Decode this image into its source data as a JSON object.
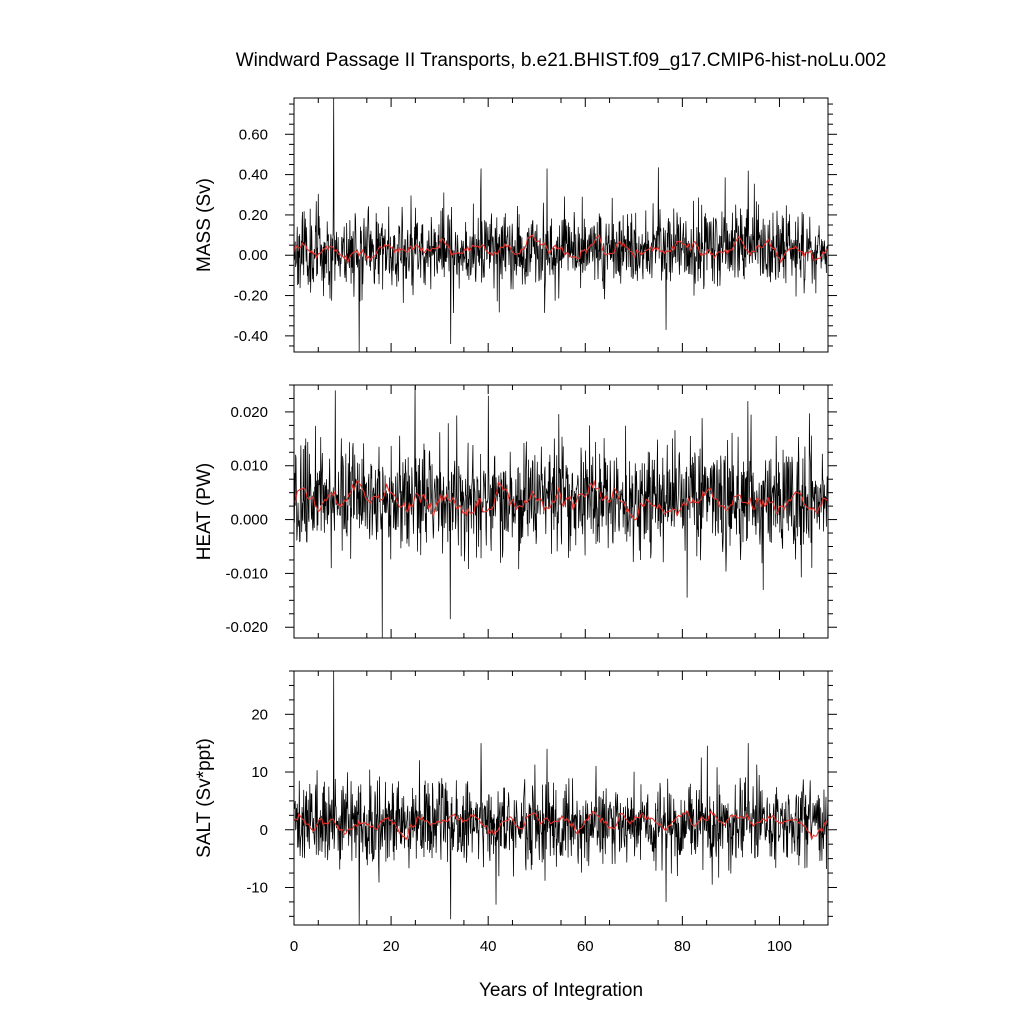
{
  "figure": {
    "title": "Windward Passage II Transports, b.e21.BHIST.f09_g17.CMIP6-hist-noLu.002",
    "xlabel": "Years of Integration"
  },
  "colors": {
    "raw_line": "#000000",
    "smoothed_line": "#e8302a",
    "frame": "#000000",
    "background": "#ffffff"
  },
  "chart_data": [
    {
      "type": "line",
      "panel": "mass",
      "ylabel": "MASS (Sv)",
      "xlim": [
        0,
        110
      ],
      "ylim": [
        -0.48,
        0.78
      ],
      "xticks": [
        0,
        20,
        40,
        60,
        80,
        100
      ],
      "yticks": [
        -0.4,
        -0.2,
        0.0,
        0.2,
        0.4,
        0.6
      ],
      "ytick_labels": [
        "-0.40",
        "-0.20",
        "0.00",
        "0.20",
        "0.40",
        "0.60"
      ],
      "series": [
        {
          "style": "raw",
          "mean": 0.03,
          "std": 0.1,
          "seed": 11,
          "spikes": [
            [
              8.2,
              0.78
            ],
            [
              13.4,
              -0.48
            ],
            [
              32.3,
              -0.44
            ],
            [
              38.5,
              0.43
            ],
            [
              52.1,
              0.43
            ],
            [
              76.6,
              -0.37
            ],
            [
              93.6,
              0.42
            ]
          ]
        },
        {
          "style": "smoothed",
          "mean": 0.03,
          "amp": 0.035,
          "seed": 12
        }
      ]
    },
    {
      "type": "line",
      "panel": "heat",
      "ylabel": "HEAT (PW)",
      "xlim": [
        0,
        110
      ],
      "ylim": [
        -0.022,
        0.025
      ],
      "xticks": [
        0,
        20,
        40,
        60,
        80,
        100
      ],
      "yticks": [
        -0.02,
        -0.01,
        0.0,
        0.01,
        0.02
      ],
      "ytick_labels": [
        "-0.020",
        "-0.010",
        "0.000",
        "0.010",
        "0.020"
      ],
      "series": [
        {
          "style": "raw",
          "mean": 0.004,
          "std": 0.0052,
          "seed": 21,
          "spikes": [
            [
              8.5,
              0.024
            ],
            [
              18.2,
              -0.022
            ],
            [
              24.9,
              0.025
            ],
            [
              32.2,
              -0.0185
            ],
            [
              40.0,
              0.023
            ],
            [
              81.0,
              -0.0145
            ],
            [
              93.5,
              0.022
            ]
          ]
        },
        {
          "style": "smoothed",
          "mean": 0.0035,
          "amp": 0.0018,
          "seed": 22
        }
      ]
    },
    {
      "type": "line",
      "panel": "salt",
      "ylabel": "SALT (Sv*ppt)",
      "xlim": [
        0,
        110
      ],
      "ylim": [
        -16.5,
        27.5
      ],
      "xticks": [
        0,
        20,
        40,
        60,
        80,
        100
      ],
      "xtick_labels": [
        "0",
        "20",
        "40",
        "60",
        "80",
        "100"
      ],
      "yticks": [
        -10,
        0,
        10,
        20
      ],
      "ytick_labels": [
        "-10",
        "0",
        "10",
        "20"
      ],
      "series": [
        {
          "style": "raw",
          "mean": 1.2,
          "std": 3.6,
          "seed": 31,
          "spikes": [
            [
              8.2,
              27.5
            ],
            [
              13.4,
              -16.5
            ],
            [
              32.3,
              -15.5
            ],
            [
              38.5,
              15.0
            ],
            [
              52.1,
              14.0
            ],
            [
              76.6,
              -12.5
            ],
            [
              93.6,
              15.0
            ]
          ]
        },
        {
          "style": "smoothed",
          "mean": 1.2,
          "amp": 1.2,
          "seed": 32
        }
      ]
    }
  ]
}
